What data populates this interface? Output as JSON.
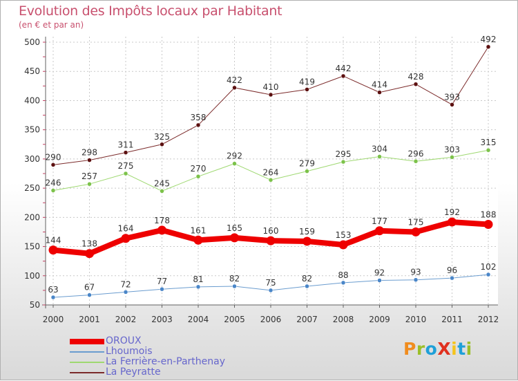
{
  "title": "Evolution des Impôts locaux par Habitant",
  "subtitle": "(en € et par an)",
  "logo": {
    "text": "ProXiti",
    "letters": [
      {
        "ch": "P",
        "color": "#f08c1e"
      },
      {
        "ch": "r",
        "color": "#9bbf2a"
      },
      {
        "ch": "o",
        "color": "#1fa0d8"
      },
      {
        "ch": "X",
        "color": "#e0301e"
      },
      {
        "ch": "i",
        "color": "#f5c41b"
      },
      {
        "ch": "t",
        "color": "#1fa0d8"
      },
      {
        "ch": "i",
        "color": "#9bbf2a"
      }
    ]
  },
  "chart_data": {
    "type": "line",
    "title": "Evolution des Impôts locaux par Habitant",
    "subtitle": "(en € et par an)",
    "xlabel": "",
    "ylabel": "",
    "categories": [
      "2000",
      "2001",
      "2002",
      "2003",
      "2004",
      "2005",
      "2006",
      "2007",
      "2008",
      "2009",
      "2010",
      "2011",
      "2012"
    ],
    "ylim": [
      50,
      500
    ],
    "yticks": [
      50,
      100,
      150,
      200,
      250,
      300,
      350,
      400,
      450,
      500
    ],
    "grid": true,
    "legend_position": "bottom-left",
    "series": [
      {
        "name": "La Peyratte",
        "color": "#7b2a2a",
        "point_color": "#5c1010",
        "width": 1,
        "values": [
          290,
          298,
          311,
          325,
          358,
          422,
          410,
          419,
          442,
          414,
          428,
          393,
          492
        ]
      },
      {
        "name": "La Ferrière-en-Parthenay",
        "color": "#9ed870",
        "point_color": "#7cc24a",
        "width": 1,
        "values": [
          246,
          257,
          275,
          245,
          270,
          292,
          264,
          279,
          295,
          304,
          296,
          303,
          315
        ]
      },
      {
        "name": "OROUX",
        "color": "#ee0000",
        "point_color": "#ee0000",
        "width": 8,
        "values": [
          144,
          138,
          164,
          178,
          161,
          165,
          160,
          159,
          153,
          177,
          175,
          192,
          188
        ]
      },
      {
        "name": "Lhoumois",
        "color": "#6a9ccf",
        "point_color": "#4a86c8",
        "width": 1,
        "values": [
          63,
          67,
          72,
          77,
          81,
          82,
          75,
          82,
          88,
          92,
          93,
          96,
          102
        ]
      }
    ],
    "legend_order": [
      "OROUX",
      "Lhoumois",
      "La Ferrière-en-Parthenay",
      "La Peyratte"
    ]
  }
}
